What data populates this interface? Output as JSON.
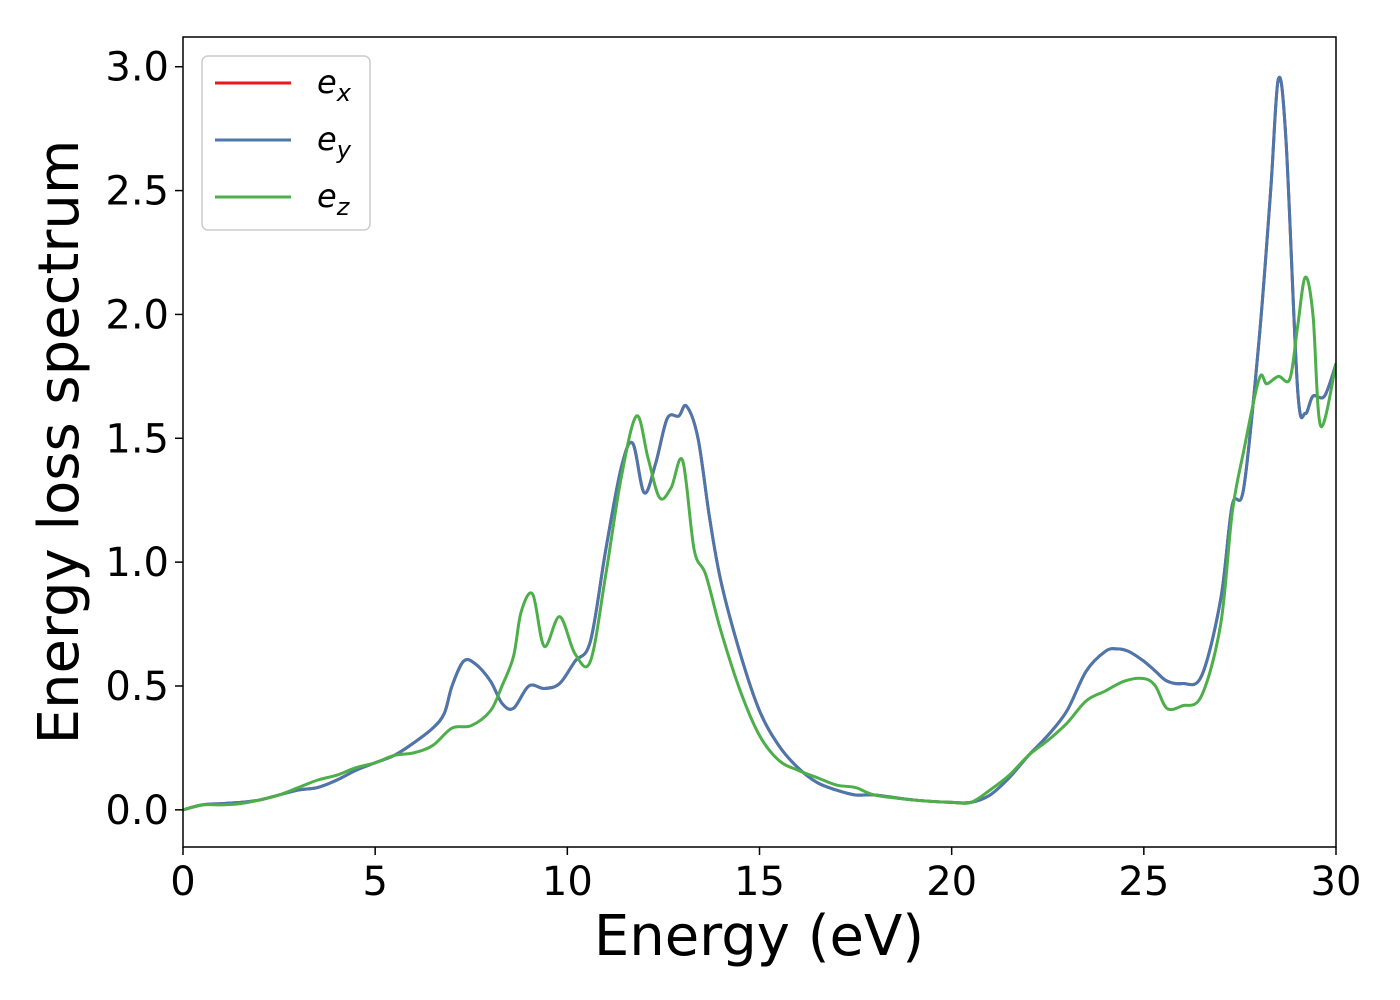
{
  "chart_data": {
    "type": "line",
    "title": "",
    "xlabel": "Energy (eV)",
    "ylabel": "Energy loss spectrum",
    "xlim": [
      0,
      30
    ],
    "ylim": [
      -0.15,
      3.12
    ],
    "xticks": [
      0,
      5,
      10,
      15,
      20,
      25,
      30
    ],
    "yticks": [
      0.0,
      0.5,
      1.0,
      1.5,
      2.0,
      2.5,
      3.0
    ],
    "xtick_labels": [
      "0",
      "5",
      "10",
      "15",
      "20",
      "25",
      "30"
    ],
    "ytick_labels": [
      "0.0",
      "0.5",
      "1.0",
      "1.5",
      "2.0",
      "2.5",
      "3.0"
    ],
    "grid": false,
    "legend_position": "top-left",
    "series": [
      {
        "name": "e",
        "subscript": "x",
        "color": "#e41a1c",
        "x": [
          0,
          0.5,
          1,
          1.5,
          2,
          2.5,
          3,
          3.5,
          4,
          4.5,
          5,
          5.5,
          6,
          6.5,
          6.8,
          7,
          7.3,
          7.6,
          8,
          8.3,
          8.6,
          9,
          9.4,
          9.8,
          10.2,
          10.6,
          11,
          11.4,
          11.7,
          12,
          12.3,
          12.6,
          12.9,
          13.1,
          13.4,
          13.7,
          14,
          14.5,
          15,
          15.5,
          16,
          16.5,
          17,
          17.5,
          18,
          19,
          20,
          20.5,
          21,
          21.5,
          22,
          22.5,
          23,
          23.5,
          24,
          24.3,
          24.6,
          25,
          25.3,
          25.6,
          26,
          26.5,
          27,
          27.3,
          27.6,
          28,
          28.3,
          28.5,
          28.7,
          29,
          29.2,
          29.4,
          29.7,
          30
        ],
        "y": [
          0,
          0.02,
          0.025,
          0.03,
          0.04,
          0.06,
          0.08,
          0.09,
          0.12,
          0.16,
          0.19,
          0.22,
          0.27,
          0.33,
          0.39,
          0.5,
          0.6,
          0.59,
          0.52,
          0.43,
          0.41,
          0.5,
          0.49,
          0.51,
          0.6,
          0.68,
          1.05,
          1.38,
          1.48,
          1.28,
          1.4,
          1.58,
          1.59,
          1.63,
          1.5,
          1.18,
          0.92,
          0.63,
          0.4,
          0.26,
          0.17,
          0.11,
          0.08,
          0.06,
          0.06,
          0.04,
          0.03,
          0.03,
          0.06,
          0.13,
          0.22,
          0.3,
          0.4,
          0.56,
          0.64,
          0.65,
          0.64,
          0.6,
          0.56,
          0.52,
          0.51,
          0.54,
          0.85,
          1.23,
          1.3,
          1.9,
          2.5,
          2.95,
          2.7,
          1.7,
          1.6,
          1.67,
          1.67,
          1.8
        ]
      },
      {
        "name": "e",
        "subscript": "y",
        "color": "#4a78ad",
        "x": [
          0,
          0.5,
          1,
          1.5,
          2,
          2.5,
          3,
          3.5,
          4,
          4.5,
          5,
          5.5,
          6,
          6.5,
          6.8,
          7,
          7.3,
          7.6,
          8,
          8.3,
          8.6,
          9,
          9.4,
          9.8,
          10.2,
          10.6,
          11,
          11.4,
          11.7,
          12,
          12.3,
          12.6,
          12.9,
          13.1,
          13.4,
          13.7,
          14,
          14.5,
          15,
          15.5,
          16,
          16.5,
          17,
          17.5,
          18,
          19,
          20,
          20.5,
          21,
          21.5,
          22,
          22.5,
          23,
          23.5,
          24,
          24.3,
          24.6,
          25,
          25.3,
          25.6,
          26,
          26.5,
          27,
          27.3,
          27.6,
          28,
          28.3,
          28.5,
          28.7,
          29,
          29.2,
          29.4,
          29.7,
          30
        ],
        "y": [
          0,
          0.02,
          0.025,
          0.03,
          0.04,
          0.06,
          0.08,
          0.09,
          0.12,
          0.16,
          0.19,
          0.22,
          0.27,
          0.33,
          0.39,
          0.5,
          0.6,
          0.59,
          0.52,
          0.43,
          0.41,
          0.5,
          0.49,
          0.51,
          0.6,
          0.68,
          1.05,
          1.38,
          1.48,
          1.28,
          1.4,
          1.58,
          1.59,
          1.63,
          1.5,
          1.18,
          0.92,
          0.63,
          0.4,
          0.26,
          0.17,
          0.11,
          0.08,
          0.06,
          0.06,
          0.04,
          0.03,
          0.03,
          0.06,
          0.13,
          0.22,
          0.3,
          0.4,
          0.56,
          0.64,
          0.65,
          0.64,
          0.6,
          0.56,
          0.52,
          0.51,
          0.54,
          0.85,
          1.23,
          1.3,
          1.9,
          2.5,
          2.95,
          2.7,
          1.7,
          1.6,
          1.67,
          1.67,
          1.8
        ]
      },
      {
        "name": "e",
        "subscript": "z",
        "color": "#4daf4a",
        "x": [
          0,
          0.5,
          1,
          1.5,
          2,
          2.5,
          3,
          3.5,
          4,
          4.5,
          5,
          5.5,
          6,
          6.5,
          7,
          7.5,
          8,
          8.3,
          8.6,
          8.8,
          9.1,
          9.4,
          9.8,
          10.2,
          10.6,
          11,
          11.4,
          11.8,
          12.1,
          12.4,
          12.7,
          13,
          13.3,
          13.6,
          14,
          14.5,
          15,
          15.5,
          16,
          16.5,
          17,
          17.5,
          18,
          19,
          20,
          20.5,
          21,
          21.5,
          22,
          22.5,
          23,
          23.5,
          24,
          24.5,
          25,
          25.3,
          25.6,
          26,
          26.5,
          27,
          27.3,
          27.6,
          28,
          28.2,
          28.5,
          28.8,
          29,
          29.2,
          29.4,
          29.6,
          30
        ],
        "y": [
          0,
          0.02,
          0.02,
          0.025,
          0.04,
          0.06,
          0.09,
          0.12,
          0.14,
          0.17,
          0.19,
          0.22,
          0.23,
          0.26,
          0.33,
          0.34,
          0.4,
          0.5,
          0.62,
          0.8,
          0.87,
          0.66,
          0.78,
          0.63,
          0.6,
          0.95,
          1.34,
          1.59,
          1.42,
          1.26,
          1.3,
          1.41,
          1.05,
          0.95,
          0.72,
          0.48,
          0.3,
          0.2,
          0.16,
          0.13,
          0.1,
          0.09,
          0.06,
          0.04,
          0.03,
          0.03,
          0.08,
          0.14,
          0.22,
          0.28,
          0.35,
          0.44,
          0.48,
          0.52,
          0.53,
          0.5,
          0.41,
          0.42,
          0.46,
          0.75,
          1.2,
          1.45,
          1.74,
          1.72,
          1.75,
          1.74,
          1.95,
          2.15,
          2.0,
          1.55,
          1.8
        ]
      }
    ]
  }
}
